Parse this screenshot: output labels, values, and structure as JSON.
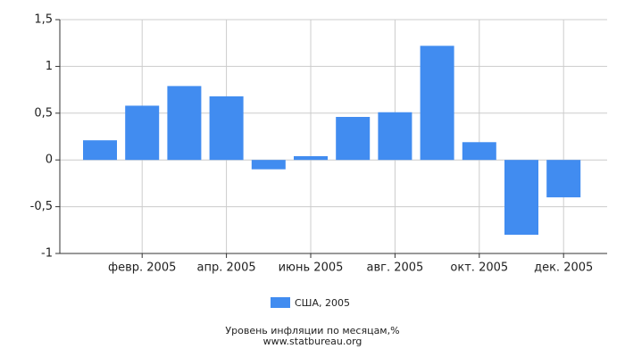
{
  "chart_data": {
    "type": "bar",
    "title": "Уровень инфляции по месяцам,%",
    "subtitle": "www.statbureau.org",
    "categories": [
      null,
      "февр. 2005",
      null,
      "апр. 2005",
      null,
      "июнь 2005",
      null,
      "авг. 2005",
      null,
      "окт. 2005",
      null,
      "дек. 2005"
    ],
    "series": [
      {
        "name": "США, 2005",
        "color": "#418cf0",
        "values": [
          0.21,
          0.58,
          0.79,
          0.68,
          -0.1,
          0.04,
          0.46,
          0.51,
          1.22,
          0.19,
          -0.8,
          -0.4
        ]
      }
    ],
    "ylim": [
      -1,
      1.5
    ],
    "yticks": [
      {
        "value": -1,
        "label": "-1"
      },
      {
        "value": -0.5,
        "label": "-0,5"
      },
      0,
      {
        "value": 0.5,
        "label": "0,5"
      },
      1,
      {
        "value": 1.5,
        "label": "1,5"
      }
    ],
    "grid": true,
    "legend": "bottom"
  }
}
